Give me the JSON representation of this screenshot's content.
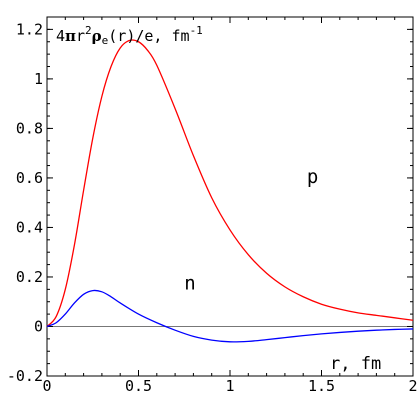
{
  "chart_data": {
    "type": "line",
    "ylabel": {
      "prefix": "4",
      "pi": "π",
      "r": "r",
      "exp2": "2",
      "rho": "ρ",
      "sub_e": "e",
      "rest": "(r)/e, fm",
      "exp_unit": "-1"
    },
    "xlabel": "r, fm",
    "xlim": [
      0,
      2
    ],
    "ylim": [
      -0.2,
      1.25
    ],
    "x_ticks": [
      {
        "value": 0,
        "label": "0"
      },
      {
        "value": 0.5,
        "label": "0.5"
      },
      {
        "value": 1,
        "label": "1"
      },
      {
        "value": 1.5,
        "label": "1.5"
      },
      {
        "value": 2,
        "label": "2"
      }
    ],
    "y_ticks": [
      {
        "value": -0.2,
        "label": "-0.2"
      },
      {
        "value": 0,
        "label": "0"
      },
      {
        "value": 0.2,
        "label": "0.2"
      },
      {
        "value": 0.4,
        "label": "0.4"
      },
      {
        "value": 0.6,
        "label": "0.6"
      },
      {
        "value": 0.8,
        "label": "0.8"
      },
      {
        "value": 1,
        "label": "1"
      },
      {
        "value": 1.2,
        "label": "1.2"
      }
    ],
    "zero_line": true,
    "series": [
      {
        "name": "p",
        "color": "#ff0000",
        "points": [
          [
            0,
            0
          ],
          [
            0.05,
            0.04
          ],
          [
            0.1,
            0.15
          ],
          [
            0.15,
            0.33
          ],
          [
            0.2,
            0.55
          ],
          [
            0.25,
            0.76
          ],
          [
            0.3,
            0.93
          ],
          [
            0.35,
            1.05
          ],
          [
            0.4,
            1.125
          ],
          [
            0.45,
            1.155
          ],
          [
            0.5,
            1.15
          ],
          [
            0.55,
            1.115
          ],
          [
            0.6,
            1.055
          ],
          [
            0.7,
            0.88
          ],
          [
            0.8,
            0.69
          ],
          [
            0.9,
            0.52
          ],
          [
            1.0,
            0.39
          ],
          [
            1.1,
            0.29
          ],
          [
            1.2,
            0.215
          ],
          [
            1.3,
            0.16
          ],
          [
            1.4,
            0.12
          ],
          [
            1.5,
            0.09
          ],
          [
            1.6,
            0.07
          ],
          [
            1.7,
            0.055
          ],
          [
            1.8,
            0.045
          ],
          [
            1.9,
            0.035
          ],
          [
            2.0,
            0.025
          ]
        ]
      },
      {
        "name": "n",
        "color": "#0000ff",
        "points": [
          [
            0,
            0
          ],
          [
            0.05,
            0.015
          ],
          [
            0.1,
            0.05
          ],
          [
            0.15,
            0.095
          ],
          [
            0.2,
            0.13
          ],
          [
            0.25,
            0.145
          ],
          [
            0.3,
            0.14
          ],
          [
            0.35,
            0.12
          ],
          [
            0.4,
            0.095
          ],
          [
            0.5,
            0.05
          ],
          [
            0.6,
            0.015
          ],
          [
            0.7,
            -0.015
          ],
          [
            0.8,
            -0.04
          ],
          [
            0.9,
            -0.055
          ],
          [
            1.0,
            -0.062
          ],
          [
            1.1,
            -0.06
          ],
          [
            1.2,
            -0.053
          ],
          [
            1.3,
            -0.045
          ],
          [
            1.4,
            -0.037
          ],
          [
            1.5,
            -0.03
          ],
          [
            1.6,
            -0.024
          ],
          [
            1.7,
            -0.019
          ],
          [
            1.8,
            -0.015
          ],
          [
            1.9,
            -0.012
          ],
          [
            2.0,
            -0.01
          ]
        ]
      }
    ],
    "labels": [
      {
        "text": "p",
        "x": 1.42,
        "y": 0.58
      },
      {
        "text": "n",
        "x": 0.75,
        "y": 0.15
      }
    ]
  }
}
